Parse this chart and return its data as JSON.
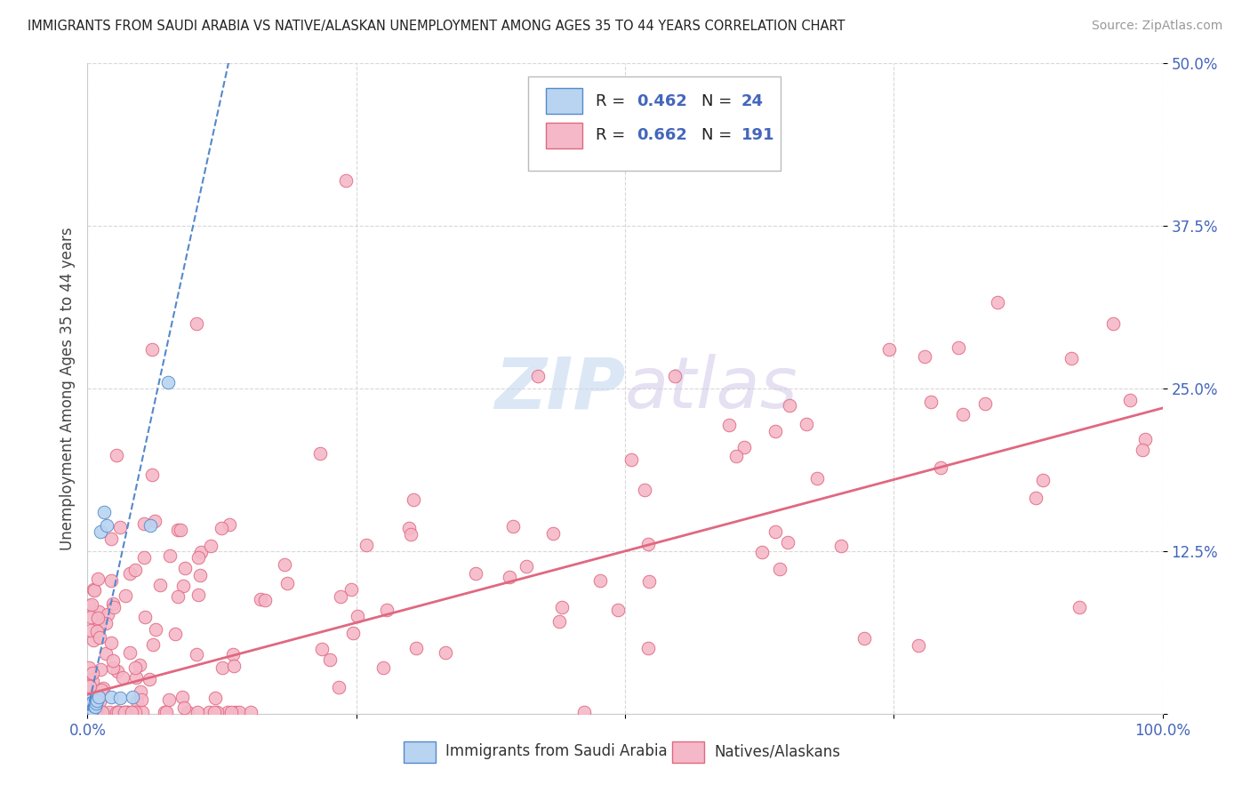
{
  "title": "IMMIGRANTS FROM SAUDI ARABIA VS NATIVE/ALASKAN UNEMPLOYMENT AMONG AGES 35 TO 44 YEARS CORRELATION CHART",
  "source": "Source: ZipAtlas.com",
  "ylabel": "Unemployment Among Ages 35 to 44 years",
  "blue_color": "#b8d4f0",
  "pink_color": "#f5b8c8",
  "blue_line_color": "#5588cc",
  "pink_line_color": "#e06880",
  "tick_color": "#4466bb",
  "watermark_color": "#c5d8f0",
  "blue_slope": 3.8,
  "blue_intercept": 0.002,
  "pink_slope": 0.22,
  "pink_intercept": 0.015
}
